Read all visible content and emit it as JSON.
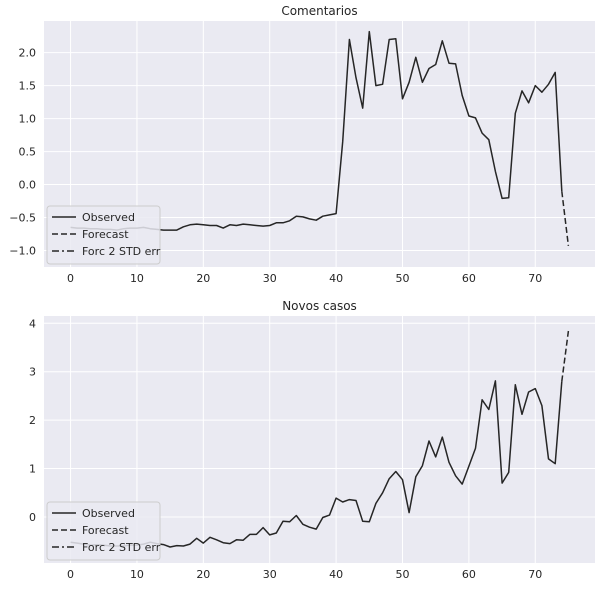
{
  "colors": {
    "figure_background": "#ffffff",
    "axes_background": "#eaeaf2",
    "grid": "#ffffff",
    "line": "#262626",
    "legend_background": "#eaeaf2",
    "legend_border": "#cccccc"
  },
  "chart_data": [
    {
      "type": "line",
      "title": "Comentarios",
      "xlabel": "",
      "ylabel": "",
      "xlim": [
        -4,
        79
      ],
      "ylim": [
        -1.25,
        2.48
      ],
      "xticks": [
        0,
        10,
        20,
        30,
        40,
        50,
        60,
        70
      ],
      "xtick_labels": [
        "0",
        "10",
        "20",
        "30",
        "40",
        "50",
        "60",
        "70"
      ],
      "yticks": [
        -1.0,
        -0.5,
        0.0,
        0.5,
        1.0,
        1.5,
        2.0
      ],
      "ytick_labels": [
        "−1.0",
        "−0.5",
        "0.0",
        "0.5",
        "1.0",
        "1.5",
        "2.0"
      ],
      "grid": true,
      "legend_position": "lower-left",
      "legend": [
        {
          "label": "Observed",
          "style": "solid"
        },
        {
          "label": "Forecast",
          "style": "dashed"
        },
        {
          "label": "Forc 2 STD err",
          "style": "dashdot"
        }
      ],
      "series": [
        {
          "name": "Observed",
          "style": "solid",
          "x": [
            0,
            1,
            2,
            3,
            4,
            5,
            6,
            7,
            8,
            9,
            10,
            11,
            12,
            13,
            14,
            15,
            16,
            17,
            18,
            19,
            20,
            21,
            22,
            23,
            24,
            25,
            26,
            27,
            28,
            29,
            30,
            31,
            32,
            33,
            34,
            35,
            36,
            37,
            38,
            39,
            40,
            41,
            42,
            43,
            44,
            45,
            46,
            47,
            48,
            49,
            50,
            51,
            52,
            53,
            54,
            55,
            56,
            57,
            58,
            59,
            60,
            61,
            62,
            63,
            64,
            65,
            66,
            67,
            68,
            69,
            70,
            71,
            72,
            73,
            74
          ],
          "y": [
            -0.65,
            -0.66,
            -0.66,
            -0.67,
            -0.67,
            -0.68,
            -0.68,
            -0.69,
            -0.67,
            -0.66,
            -0.66,
            -0.65,
            -0.67,
            -0.68,
            -0.69,
            -0.69,
            -0.69,
            -0.64,
            -0.61,
            -0.6,
            -0.61,
            -0.62,
            -0.62,
            -0.66,
            -0.61,
            -0.62,
            -0.6,
            -0.61,
            -0.62,
            -0.63,
            -0.62,
            -0.58,
            -0.58,
            -0.55,
            -0.48,
            -0.49,
            -0.52,
            -0.54,
            -0.48,
            -0.46,
            -0.44,
            0.65,
            2.2,
            1.62,
            1.16,
            2.32,
            1.5,
            1.52,
            2.2,
            2.21,
            1.3,
            1.55,
            1.93,
            1.55,
            1.76,
            1.82,
            2.18,
            1.84,
            1.83,
            1.35,
            1.04,
            1.01,
            0.78,
            0.68,
            0.2,
            -0.21,
            -0.2,
            1.08,
            1.42,
            1.24,
            1.5,
            1.4,
            1.52,
            1.7,
            -0.1
          ]
        },
        {
          "name": "Forecast",
          "style": "dashed",
          "x": [
            74,
            75
          ],
          "y": [
            -0.1,
            -0.93
          ]
        }
      ]
    },
    {
      "type": "line",
      "title": "Novos casos",
      "xlabel": "",
      "ylabel": "",
      "xlim": [
        -4,
        79
      ],
      "ylim": [
        -0.95,
        4.15
      ],
      "xticks": [
        0,
        10,
        20,
        30,
        40,
        50,
        60,
        70
      ],
      "xtick_labels": [
        "0",
        "10",
        "20",
        "30",
        "40",
        "50",
        "60",
        "70"
      ],
      "yticks": [
        0,
        1,
        2,
        3,
        4
      ],
      "ytick_labels": [
        "0",
        "1",
        "2",
        "3",
        "4"
      ],
      "grid": true,
      "legend_position": "lower-left",
      "legend": [
        {
          "label": "Observed",
          "style": "solid"
        },
        {
          "label": "Forecast",
          "style": "dashed"
        },
        {
          "label": "Forc 2 STD err",
          "style": "dashdot"
        }
      ],
      "series": [
        {
          "name": "Observed",
          "style": "solid",
          "x": [
            0,
            1,
            2,
            3,
            4,
            5,
            6,
            7,
            8,
            9,
            10,
            11,
            12,
            13,
            14,
            15,
            16,
            17,
            18,
            19,
            20,
            21,
            22,
            23,
            24,
            25,
            26,
            27,
            28,
            29,
            30,
            31,
            32,
            33,
            34,
            35,
            36,
            37,
            38,
            39,
            40,
            41,
            42,
            43,
            44,
            45,
            46,
            47,
            48,
            49,
            50,
            51,
            52,
            53,
            54,
            55,
            56,
            57,
            58,
            59,
            60,
            61,
            62,
            63,
            64,
            65,
            66,
            67,
            68,
            69,
            70,
            71,
            72,
            73,
            74
          ],
          "y": [
            -0.52,
            -0.54,
            -0.56,
            -0.58,
            -0.57,
            -0.58,
            -0.6,
            -0.6,
            -0.6,
            -0.58,
            -0.58,
            -0.56,
            -0.52,
            -0.55,
            -0.57,
            -0.62,
            -0.59,
            -0.6,
            -0.56,
            -0.44,
            -0.54,
            -0.42,
            -0.47,
            -0.53,
            -0.55,
            -0.47,
            -0.48,
            -0.36,
            -0.36,
            -0.22,
            -0.37,
            -0.33,
            -0.09,
            -0.1,
            0.03,
            -0.15,
            -0.21,
            -0.25,
            -0.01,
            0.04,
            0.39,
            0.31,
            0.36,
            0.34,
            -0.09,
            -0.1,
            0.28,
            0.5,
            0.79,
            0.94,
            0.77,
            0.09,
            0.83,
            1.06,
            1.57,
            1.24,
            1.65,
            1.13,
            0.85,
            0.68,
            1.05,
            1.42,
            2.42,
            2.22,
            2.81,
            0.7,
            0.92,
            2.73,
            2.12,
            2.58,
            2.65,
            2.3,
            1.2,
            1.1,
            2.8
          ]
        },
        {
          "name": "Forecast",
          "style": "dashed",
          "x": [
            74,
            75
          ],
          "y": [
            2.8,
            3.84
          ]
        }
      ]
    }
  ]
}
